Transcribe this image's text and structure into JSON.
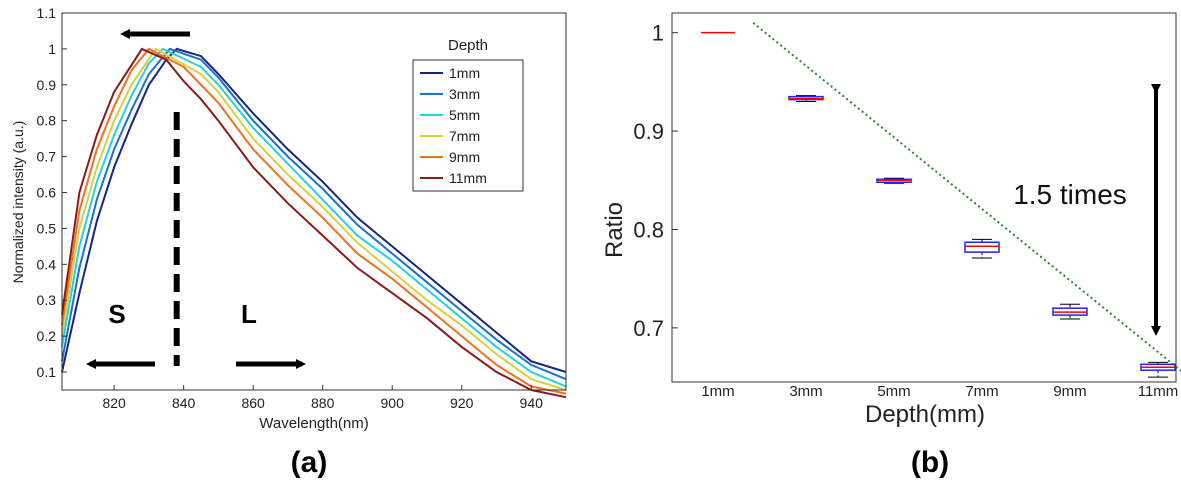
{
  "chart_data": [
    {
      "type": "line",
      "panel_label": "(a)",
      "xlabel": "Wavelength(nm)",
      "ylabel": "Normalized intensity (a.u.)",
      "xlim": [
        805,
        950
      ],
      "ylim": [
        0.05,
        1.1
      ],
      "xticks": [
        820,
        840,
        860,
        880,
        900,
        920,
        940
      ],
      "yticks": [
        0.1,
        0.2,
        0.3,
        0.4,
        0.5,
        0.6,
        0.7,
        0.8,
        0.9,
        1,
        1.1
      ],
      "grid": false,
      "legend": {
        "title": "Depth",
        "position": "top-right"
      },
      "series": [
        {
          "name": "1mm",
          "color": "#1a237e",
          "peak_x": 838,
          "x": [
            805,
            810,
            815,
            820,
            825,
            830,
            835,
            838,
            845,
            850,
            860,
            870,
            880,
            890,
            900,
            910,
            920,
            930,
            940,
            950
          ],
          "y": [
            0.1,
            0.32,
            0.52,
            0.67,
            0.79,
            0.9,
            0.97,
            1.0,
            0.98,
            0.93,
            0.82,
            0.72,
            0.63,
            0.53,
            0.45,
            0.37,
            0.29,
            0.21,
            0.13,
            0.1
          ]
        },
        {
          "name": "3mm",
          "color": "#1e6fd0",
          "peak_x": 836,
          "x": [
            805,
            810,
            815,
            820,
            825,
            830,
            836,
            845,
            850,
            860,
            870,
            880,
            890,
            900,
            910,
            920,
            930,
            940,
            950
          ],
          "y": [
            0.13,
            0.39,
            0.58,
            0.72,
            0.83,
            0.93,
            1.0,
            0.97,
            0.92,
            0.8,
            0.7,
            0.61,
            0.51,
            0.43,
            0.35,
            0.27,
            0.19,
            0.12,
            0.08
          ]
        },
        {
          "name": "5mm",
          "color": "#26d0e0",
          "peak_x": 834,
          "x": [
            805,
            810,
            815,
            820,
            825,
            830,
            834,
            845,
            850,
            860,
            870,
            880,
            890,
            900,
            910,
            920,
            930,
            940,
            950
          ],
          "y": [
            0.17,
            0.45,
            0.63,
            0.76,
            0.87,
            0.96,
            1.0,
            0.95,
            0.9,
            0.78,
            0.68,
            0.58,
            0.48,
            0.41,
            0.33,
            0.25,
            0.17,
            0.1,
            0.06
          ]
        },
        {
          "name": "7mm",
          "color": "#d8d040",
          "peak_x": 832,
          "x": [
            805,
            810,
            815,
            820,
            825,
            832,
            845,
            850,
            860,
            870,
            880,
            890,
            900,
            910,
            920,
            930,
            940,
            950
          ],
          "y": [
            0.2,
            0.5,
            0.67,
            0.8,
            0.9,
            1.0,
            0.93,
            0.88,
            0.75,
            0.65,
            0.56,
            0.46,
            0.38,
            0.3,
            0.23,
            0.15,
            0.08,
            0.05
          ]
        },
        {
          "name": "9mm",
          "color": "#f07020",
          "peak_x": 830,
          "x": [
            805,
            810,
            815,
            820,
            825,
            830,
            840,
            845,
            850,
            860,
            870,
            880,
            890,
            900,
            910,
            920,
            930,
            940,
            950
          ],
          "y": [
            0.23,
            0.55,
            0.72,
            0.84,
            0.94,
            1.0,
            0.95,
            0.9,
            0.85,
            0.72,
            0.62,
            0.53,
            0.43,
            0.36,
            0.28,
            0.2,
            0.12,
            0.06,
            0.04
          ]
        },
        {
          "name": "11mm",
          "color": "#8b1a1a",
          "peak_x": 828,
          "x": [
            805,
            810,
            815,
            820,
            828,
            835,
            840,
            845,
            850,
            860,
            870,
            880,
            890,
            900,
            910,
            920,
            930,
            940,
            950
          ],
          "y": [
            0.26,
            0.6,
            0.76,
            0.88,
            1.0,
            0.97,
            0.91,
            0.86,
            0.8,
            0.67,
            0.57,
            0.48,
            0.39,
            0.32,
            0.25,
            0.17,
            0.1,
            0.05,
            0.03
          ]
        }
      ],
      "annotations": {
        "divider_x": 838,
        "short_label": "S",
        "long_label": "L"
      }
    },
    {
      "type": "box",
      "panel_label": "(b)",
      "xlabel": "Depth(mm)",
      "ylabel": "Ratio",
      "ylim": [
        0.645,
        1.02
      ],
      "yticks": [
        0.7,
        0.8,
        0.9,
        1
      ],
      "categories": [
        "1mm",
        "3mm",
        "5mm",
        "7mm",
        "9mm",
        "11mm"
      ],
      "boxes": [
        {
          "min": 1.0,
          "q1": 1.0,
          "median": 1.0,
          "q3": 1.0,
          "max": 1.0
        },
        {
          "min": 0.93,
          "q1": 0.932,
          "median": 0.933,
          "q3": 0.935,
          "max": 0.936
        },
        {
          "min": 0.847,
          "q1": 0.848,
          "median": 0.85,
          "q3": 0.851,
          "max": 0.852
        },
        {
          "min": 0.771,
          "q1": 0.777,
          "median": 0.783,
          "q3": 0.787,
          "max": 0.79
        },
        {
          "min": 0.709,
          "q1": 0.713,
          "median": 0.716,
          "q3": 0.72,
          "max": 0.724
        },
        {
          "min": 0.65,
          "q1": 0.657,
          "median": 0.66,
          "q3": 0.663,
          "max": 0.665
        }
      ],
      "trendline": {
        "start": [
          0.4,
          1.01
        ],
        "end": [
          5.35,
          0.65
        ]
      },
      "grid": false,
      "annotation": "1.5 times"
    }
  ]
}
